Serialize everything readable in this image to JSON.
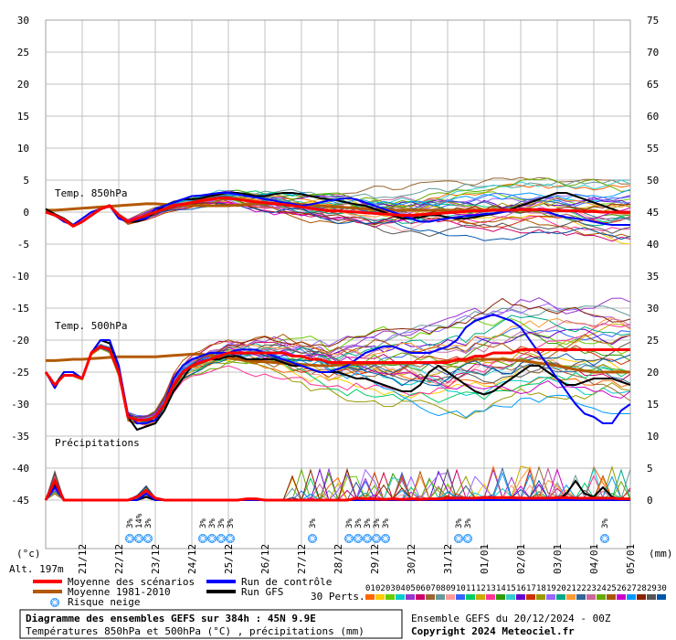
{
  "chart_data": {
    "type": "line",
    "left_axis": {
      "unit_label": "(°c)",
      "ticks": [
        30,
        25,
        20,
        15,
        10,
        5,
        0,
        -5,
        -10,
        -15,
        -20,
        -25,
        -30,
        -35,
        -40,
        -45
      ]
    },
    "right_axis": {
      "unit_label": "(mm)",
      "ticks": [
        75,
        70,
        65,
        60,
        55,
        50,
        45,
        40,
        35,
        30,
        25,
        20,
        15,
        10,
        5,
        0
      ]
    },
    "dates": [
      "21/12",
      "22/12",
      "23/12",
      "24/12",
      "25/12",
      "26/12",
      "27/12",
      "28/12",
      "29/12",
      "30/12",
      "31/12",
      "01/01",
      "02/01",
      "03/01",
      "04/01",
      "05/01"
    ],
    "panel_labels": {
      "t850": "Temp. 850hPa",
      "t500": "Temp. 500hPa",
      "precip": "Précipitations"
    },
    "grid": true,
    "x_hours": [
      0,
      6,
      12,
      18,
      24,
      30,
      36,
      42,
      48,
      54,
      60,
      66,
      72,
      78,
      84,
      90,
      96,
      102,
      108,
      114,
      120,
      126,
      132,
      138,
      144,
      150,
      156,
      162,
      168,
      174,
      180,
      186,
      192,
      198,
      204,
      210,
      216,
      222,
      228,
      234,
      240,
      246,
      252,
      258,
      264,
      270,
      276,
      282,
      288,
      294,
      300,
      306,
      312,
      318,
      324,
      330,
      336,
      342,
      348,
      354,
      360,
      366,
      372,
      378,
      384
    ],
    "series": [
      {
        "name": "Moyenne des scénarios",
        "color": "#ff0000",
        "t850": [
          0,
          -0.5,
          -1.2,
          -2.2,
          -1.5,
          -0.5,
          0.5,
          1.0,
          -0.5,
          -1.5,
          -1.0,
          -0.5,
          0,
          0.5,
          1.0,
          1.2,
          1.5,
          1.8,
          2.0,
          2.2,
          2.2,
          2.0,
          1.8,
          1.6,
          1.5,
          1.3,
          1.2,
          1.0,
          0.8,
          0.6,
          0.4,
          0.2,
          0.2,
          0.1,
          0,
          -0.1,
          -0.2,
          -0.3,
          -0.4,
          -0.5,
          -0.5,
          -0.4,
          -0.3,
          -0.2,
          -0.1,
          0,
          0.1,
          0.2,
          0.2,
          0.3,
          0.3,
          0.3,
          0.4,
          0.4,
          0.4,
          0.3,
          0.3,
          0.2,
          0.2,
          0.1,
          0.1,
          0,
          0,
          0,
          0
        ],
        "t500": [
          -25,
          -27,
          -25.5,
          -25.5,
          -26,
          -22,
          -21,
          -21.5,
          -25,
          -32,
          -32.5,
          -32.5,
          -32,
          -30,
          -27,
          -25,
          -24,
          -23.5,
          -23,
          -22.5,
          -22,
          -22,
          -22,
          -22,
          -22,
          -22,
          -22,
          -22.5,
          -22.5,
          -23,
          -23,
          -23.5,
          -23.5,
          -23.5,
          -23.5,
          -23.5,
          -23.5,
          -23.5,
          -23.5,
          -23.5,
          -23.5,
          -23.5,
          -23.5,
          -23.5,
          -23.5,
          -23,
          -23,
          -22.5,
          -22.5,
          -22,
          -22,
          -22,
          -21.5,
          -21.5,
          -21.5,
          -21.5,
          -21.5,
          -21.5,
          -21.5,
          -21.5,
          -21.5,
          -21.5,
          -21.5,
          -21.5,
          -21.5
        ],
        "precip": [
          0,
          3,
          0,
          0,
          0,
          0,
          0,
          0,
          0,
          0,
          0.5,
          1.5,
          0.3,
          0,
          0,
          0,
          0,
          0,
          0,
          0,
          0,
          0,
          0.2,
          0.2,
          0,
          0,
          0,
          0,
          0,
          0,
          0,
          0,
          0,
          0,
          0.3,
          0.2,
          0.2,
          0.1,
          0.2,
          0.1,
          0.2,
          0.1,
          0.2,
          0.2,
          0.3,
          0.3,
          0.3,
          0.3,
          0.4,
          0.4,
          0.4,
          0.4,
          0.3,
          0.3,
          0.3,
          0.3,
          0.4,
          0.4,
          0.3,
          0.3,
          0.3,
          0.3,
          0.3,
          0.2,
          0.2
        ]
      },
      {
        "name": "Moyenne 1981-2010",
        "color": "#b35900",
        "t850": [
          0.3,
          0.3,
          0.4,
          0.5,
          0.6,
          0.7,
          0.8,
          0.9,
          1.0,
          1.1,
          1.2,
          1.3,
          1.3,
          1.2,
          1.1,
          1.0,
          1.0,
          1.0,
          1.0,
          1.0,
          1.0,
          1.1,
          1.2,
          1.3,
          1.4,
          1.4,
          1.4,
          1.3,
          1.2,
          1.1,
          1.0,
          0.9,
          0.8,
          0.7,
          0.6,
          0.5,
          0.4,
          0.4,
          0.3,
          0.3,
          0.3,
          0.3,
          0.3,
          0.3,
          0.3,
          0.3,
          0.3,
          0.3,
          0.3,
          0.3,
          0.3,
          0.3,
          0.3,
          0.3,
          0.3,
          0.2,
          0.2,
          0.2,
          0.2,
          0.1,
          0.1,
          0,
          0,
          -0.1,
          -0.1
        ],
        "t500": [
          -23.2,
          -23.2,
          -23.1,
          -23,
          -23,
          -22.9,
          -22.8,
          -22.7,
          -22.6,
          -22.6,
          -22.6,
          -22.6,
          -22.6,
          -22.5,
          -22.4,
          -22.3,
          -22.2,
          -22.2,
          -22.4,
          -22.6,
          -22.8,
          -23,
          -23.2,
          -23.3,
          -23.4,
          -23.5,
          -23.6,
          -23.7,
          -23.8,
          -23.9,
          -24,
          -24,
          -23.9,
          -23.8,
          -23.8,
          -23.7,
          -23.6,
          -23.6,
          -23.6,
          -23.6,
          -23.6,
          -23.5,
          -23.5,
          -23.4,
          -23.3,
          -23.2,
          -23.1,
          -23.0,
          -23.0,
          -23.0,
          -23.0,
          -23.1,
          -23.2,
          -23.4,
          -23.6,
          -23.8,
          -24,
          -24.3,
          -24.6,
          -24.8,
          -25,
          -25,
          -25,
          -25,
          -25
        ]
      },
      {
        "name": "Run de contrôle",
        "color": "#0000ff",
        "t850": [
          0,
          -0.5,
          -1.5,
          -2.0,
          -1.0,
          0,
          0.5,
          1.0,
          -1.0,
          -1.5,
          -1.2,
          -1.0,
          0.5,
          1.0,
          1.5,
          2.0,
          2.5,
          2.6,
          2.8,
          3.0,
          3.0,
          2.8,
          2.5,
          2.3,
          2.0,
          1.8,
          1.5,
          1.3,
          1.0,
          1.2,
          1.5,
          1.8,
          2.0,
          2.2,
          2.0,
          1.5,
          1.0,
          0.5,
          0,
          -0.5,
          -1.0,
          -1.5,
          -1.5,
          -1.2,
          -1.0,
          -0.8,
          -0.6,
          -0.5,
          -0.3,
          -0.2,
          0,
          0.2,
          0.5,
          0.5,
          0.3,
          0,
          -0.5,
          -0.8,
          -1.0,
          -1.2,
          -1.5,
          -1.8,
          -2.0,
          -2.0,
          -2.0
        ],
        "t500": [
          -25,
          -27.5,
          -25,
          -25,
          -26,
          -22,
          -20,
          -20,
          -24,
          -31.5,
          -33,
          -33,
          -32.5,
          -30,
          -26,
          -24,
          -23,
          -22.5,
          -22,
          -22,
          -22,
          -21.5,
          -21.5,
          -21.5,
          -22,
          -22.5,
          -23,
          -23.5,
          -24,
          -24.5,
          -25,
          -25,
          -24.5,
          -24,
          -23,
          -22,
          -21.5,
          -21,
          -21,
          -21.5,
          -22,
          -22,
          -22,
          -21.5,
          -21,
          -20,
          -18,
          -17,
          -16.5,
          -16,
          -16.5,
          -17,
          -18,
          -20,
          -22,
          -24,
          -26,
          -28,
          -30,
          -31.5,
          -32,
          -33,
          -33,
          -31,
          -30
        ],
        "precip": [
          0,
          2,
          0,
          0,
          0,
          0,
          0,
          0,
          0,
          0,
          0,
          1,
          0,
          0,
          0,
          0,
          0,
          0,
          0,
          0,
          0,
          0,
          0,
          0,
          0,
          0,
          0,
          0,
          0,
          0,
          0,
          0,
          0,
          0,
          0,
          0,
          0,
          0,
          0,
          0,
          0,
          0,
          0,
          0,
          0,
          0,
          0,
          0,
          0,
          0,
          0,
          0,
          0,
          0,
          0,
          0,
          0,
          0,
          0,
          0,
          0,
          0,
          0,
          0,
          0
        ]
      },
      {
        "name": "Run GFS",
        "color": "#000000",
        "t850": [
          0.5,
          -0.3,
          -1.0,
          -2.0,
          -1.5,
          -0.5,
          0.5,
          1.0,
          -0.5,
          -1.5,
          -1.5,
          -1.0,
          0,
          1.0,
          1.5,
          2.0,
          2.0,
          2.2,
          2.5,
          2.8,
          3.0,
          3.0,
          2.8,
          2.5,
          2.5,
          2.8,
          3.0,
          3.0,
          2.8,
          2.5,
          2.2,
          2.0,
          1.8,
          1.5,
          1.2,
          1.0,
          0.5,
          0,
          -0.5,
          -1.0,
          -1.0,
          -0.8,
          -0.5,
          -0.5,
          -0.8,
          -1.0,
          -1.0,
          -0.8,
          -0.5,
          -0.3,
          0,
          0.5,
          1.0,
          1.5,
          2.0,
          2.5,
          3.0,
          3.0,
          2.5,
          2.0,
          1.5,
          1.0,
          0.5,
          0,
          0
        ],
        "t500": [
          -25,
          -27,
          -25,
          -25,
          -26,
          -22,
          -20,
          -20.5,
          -24,
          -32,
          -34,
          -33.5,
          -33,
          -31,
          -28,
          -26,
          -24,
          -23.5,
          -23,
          -23,
          -22.5,
          -22.5,
          -23,
          -23,
          -23,
          -23,
          -23.5,
          -24,
          -24,
          -24.5,
          -25,
          -25,
          -25,
          -25.5,
          -26,
          -26,
          -26.5,
          -27,
          -27.5,
          -28,
          -28,
          -27,
          -25,
          -24,
          -25,
          -26,
          -27,
          -28,
          -28.5,
          -28,
          -27,
          -26,
          -25,
          -24,
          -24,
          -25,
          -26,
          -27,
          -27,
          -26.5,
          -26,
          -26,
          -26,
          -26.5,
          -27
        ],
        "precip": [
          0,
          2.5,
          0,
          0,
          0,
          0,
          0,
          0,
          0,
          0,
          0,
          0.5,
          0,
          0,
          0,
          0,
          0,
          0,
          0,
          0,
          0,
          0,
          0,
          0,
          0,
          0,
          0,
          0,
          0,
          0,
          0,
          0,
          0,
          0,
          0,
          0,
          0,
          0,
          0,
          0,
          0,
          0,
          0,
          0,
          0,
          0,
          0,
          0,
          0,
          0,
          0,
          0,
          0,
          0,
          0,
          0,
          0,
          1,
          3,
          1,
          0.5,
          2,
          0.5,
          0.2,
          0,
          1.5,
          2,
          1,
          0,
          0
        ]
      }
    ],
    "perturbations": {
      "label": "30 Perts.",
      "codes": [
        "01",
        "02",
        "03",
        "04",
        "05",
        "06",
        "07",
        "08",
        "09",
        "10",
        "11",
        "12",
        "13",
        "14",
        "15",
        "16",
        "17",
        "18",
        "19",
        "20",
        "21",
        "22",
        "23",
        "24",
        "25",
        "26",
        "27",
        "28",
        "29",
        "30"
      ],
      "colors": [
        "#ff6600",
        "#ffcc00",
        "#66cc00",
        "#00cccc",
        "#9933cc",
        "#cc0066",
        "#996633",
        "#669999",
        "#ff9999",
        "#3366ff",
        "#00cc66",
        "#ccaa00",
        "#ff3399",
        "#339900",
        "#33cccc",
        "#6600cc",
        "#cc3300",
        "#999900",
        "#9966ff",
        "#00aa88",
        "#ff9933",
        "#336699",
        "#cc6699",
        "#66aa00",
        "#aa5500",
        "#cc00cc",
        "#0099ff",
        "#882200",
        "#555555",
        "#0055aa"
      ]
    },
    "snow_risk": [
      {
        "date": "23/12",
        "labels": [
          "3%",
          "14%",
          "3%"
        ]
      },
      {
        "date": "25/12",
        "labels": [
          "3%",
          "3%",
          "3%",
          "3%"
        ]
      },
      {
        "date": "28/12",
        "labels": [
          "3%"
        ]
      },
      {
        "date": "29/12",
        "labels": [
          "3%",
          "3%",
          "3%",
          "3%",
          "3%"
        ]
      },
      {
        "date": "01/01",
        "labels": [
          "3%",
          "3%"
        ]
      },
      {
        "date": "05/01",
        "labels": [
          "3%"
        ]
      }
    ]
  },
  "legend": {
    "alt": "Alt. 197m",
    "items": [
      {
        "label": "Moyenne des scénarios",
        "color": "#ff0000"
      },
      {
        "label": "Moyenne 1981-2010",
        "color": "#b35900"
      },
      {
        "label": "Risque neige",
        "icon": "snowflake-icon"
      },
      {
        "label": "Run de contrôle",
        "color": "#0000ff"
      },
      {
        "label": "Run GFS",
        "color": "#000000"
      }
    ],
    "perts_label": "30 Perts."
  },
  "footer": {
    "title": "Diagramme des ensembles GEFS sur 384h : 45N 9.9E",
    "subtitle": "Températures 850hPa et 500hPa (°C) , précipitations (mm)",
    "ensemble": "Ensemble GEFS du 20/12/2024 - 00Z",
    "copyright": "Copyright 2024 Meteociel.fr"
  },
  "colors": {
    "grid": "#c0c0c0",
    "snow": "#3399ff"
  }
}
